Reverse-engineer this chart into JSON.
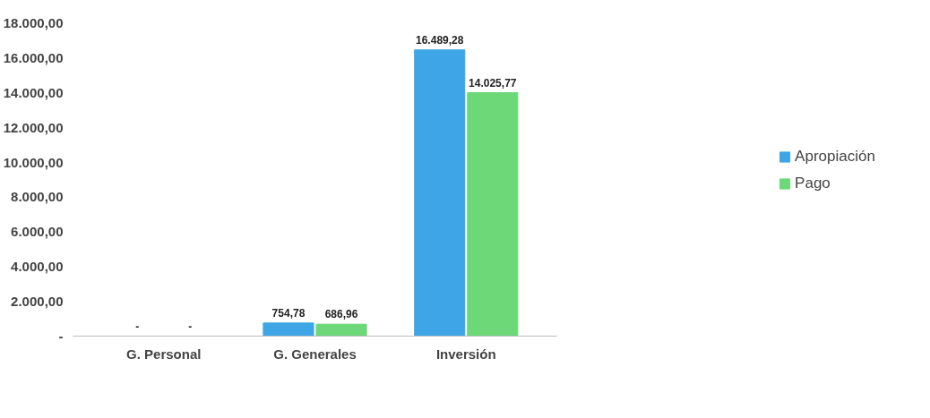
{
  "chart_data": {
    "type": "bar",
    "categories": [
      "G. Personal",
      "G. Generales",
      "Inversión"
    ],
    "series": [
      {
        "name": "Apropiación",
        "color": "#3ea6e6",
        "values": [
          0,
          754.78,
          16489.28
        ],
        "value_labels": [
          "-",
          "754,78",
          "16.489,28"
        ]
      },
      {
        "name": "Pago",
        "color": "#6cd878",
        "values": [
          0,
          686.96,
          14025.77
        ],
        "value_labels": [
          "-",
          "686,96",
          "14.025,77"
        ]
      }
    ],
    "ylim": [
      0,
      18000
    ],
    "yticks": [
      {
        "value": 0,
        "label": "-"
      },
      {
        "value": 2000,
        "label": "2.000,00"
      },
      {
        "value": 4000,
        "label": "4.000,00"
      },
      {
        "value": 6000,
        "label": "6.000,00"
      },
      {
        "value": 8000,
        "label": "8.000,00"
      },
      {
        "value": 10000,
        "label": "10.000,00"
      },
      {
        "value": 12000,
        "label": "12.000,00"
      },
      {
        "value": 14000,
        "label": "14.000,00"
      },
      {
        "value": 16000,
        "label": "16.000,00"
      },
      {
        "value": 18000,
        "label": "18.000,00"
      }
    ],
    "legend": "right",
    "grid": false
  }
}
